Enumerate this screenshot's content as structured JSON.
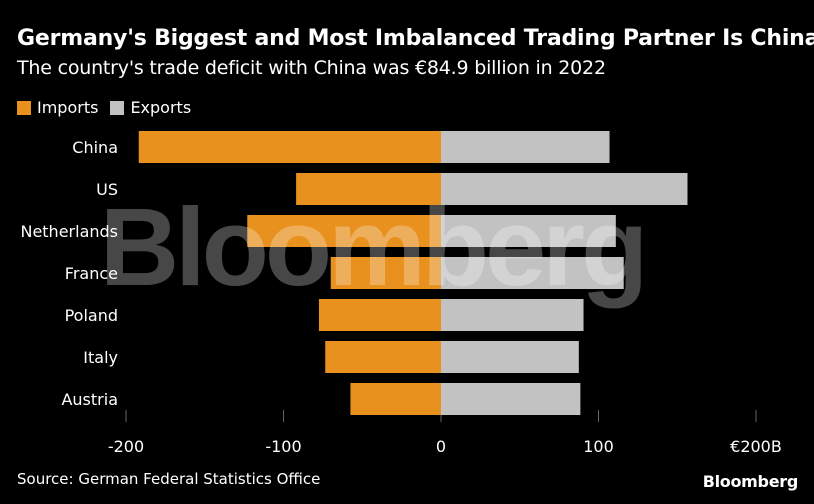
{
  "title": "Germany's Biggest and Most Imbalanced Trading Partner Is China",
  "subtitle": "The country's trade deficit with China was €84.9 billion in 2022",
  "legend": {
    "imports_label": "Imports",
    "exports_label": "Exports"
  },
  "colors": {
    "imports": "#e8911f",
    "exports": "#c2c2c2",
    "background": "#000000",
    "text": "#ffffff",
    "gridline": "#666666"
  },
  "watermark": "Bloomberg",
  "source": "Source: German Federal Statistics Office",
  "brand": "Bloomberg",
  "chart_data": {
    "type": "bar",
    "orientation": "horizontal",
    "title": "Germany's Biggest and Most Imbalanced Trading Partner Is China",
    "subtitle": "The country's trade deficit with China was €84.9 billion in 2022",
    "categories": [
      "China",
      "US",
      "Netherlands",
      "France",
      "Poland",
      "Italy",
      "Austria"
    ],
    "series": [
      {
        "name": "Imports",
        "values": [
          -191.9,
          -92.0,
          -123.0,
          -70.0,
          -77.5,
          -73.5,
          -57.5
        ]
      },
      {
        "name": "Exports",
        "values": [
          107.0,
          156.5,
          111.0,
          116.0,
          90.5,
          87.5,
          88.5
        ]
      }
    ],
    "xlim": [
      -200,
      200
    ],
    "xticks": [
      -200,
      -100,
      0,
      100,
      200
    ],
    "xtick_labels": [
      "-200",
      "-100",
      "0",
      "100",
      "€200B"
    ],
    "xlabel": "",
    "ylabel": "",
    "legend_position": "top-left"
  }
}
